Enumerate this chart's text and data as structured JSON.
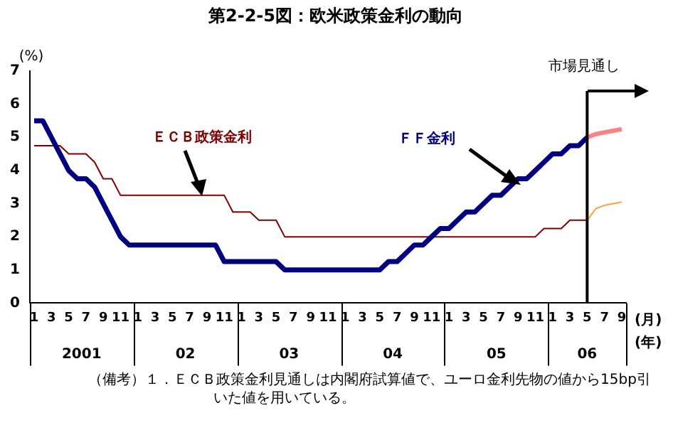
{
  "chart_data": {
    "type": "line",
    "title": "第2-2-5図：欧米政策金利の動向",
    "ylabel": "(%)",
    "xlabel": "(月)",
    "x": [
      "2001-01",
      "2001-02",
      "2001-03",
      "2001-04",
      "2001-05",
      "2001-06",
      "2001-07",
      "2001-08",
      "2001-09",
      "2001-10",
      "2001-11",
      "2001-12",
      "2002-01",
      "2002-02",
      "2002-03",
      "2002-04",
      "2002-05",
      "2002-06",
      "2002-07",
      "2002-08",
      "2002-09",
      "2002-10",
      "2002-11",
      "2002-12",
      "2003-01",
      "2003-02",
      "2003-03",
      "2003-04",
      "2003-05",
      "2003-06",
      "2003-07",
      "2003-08",
      "2003-09",
      "2003-10",
      "2003-11",
      "2003-12",
      "2004-01",
      "2004-02",
      "2004-03",
      "2004-04",
      "2004-05",
      "2004-06",
      "2004-07",
      "2004-08",
      "2004-09",
      "2004-10",
      "2004-11",
      "2004-12",
      "2005-01",
      "2005-02",
      "2005-03",
      "2005-04",
      "2005-05",
      "2005-06",
      "2005-07",
      "2005-08",
      "2005-09",
      "2005-10",
      "2005-11",
      "2005-12",
      "2006-01",
      "2006-02",
      "2006-03",
      "2006-04",
      "2006-05",
      "2006-06",
      "2006-07",
      "2006-08",
      "2006-09"
    ],
    "xlim": [
      "2000-12-16",
      "2006-09-16"
    ],
    "xticks": [
      {
        "value": "2001-01",
        "label": "1"
      },
      {
        "value": "2001-03",
        "label": "3"
      },
      {
        "value": "2001-05",
        "label": "5"
      },
      {
        "value": "2001-07",
        "label": "7"
      },
      {
        "value": "2001-09",
        "label": "9"
      },
      {
        "value": "2001-11",
        "label": "11"
      },
      {
        "value": "2002-01",
        "label": "1"
      },
      {
        "value": "2002-03",
        "label": "3"
      },
      {
        "value": "2002-05",
        "label": "5"
      },
      {
        "value": "2002-07",
        "label": "7"
      },
      {
        "value": "2002-09",
        "label": "9"
      },
      {
        "value": "2002-11",
        "label": "11"
      },
      {
        "value": "2003-01",
        "label": "1"
      },
      {
        "value": "2003-03",
        "label": "3"
      },
      {
        "value": "2003-05",
        "label": "5"
      },
      {
        "value": "2003-07",
        "label": "7"
      },
      {
        "value": "2003-09",
        "label": "9"
      },
      {
        "value": "2003-11",
        "label": "11"
      },
      {
        "value": "2004-01",
        "label": "1"
      },
      {
        "value": "2004-03",
        "label": "3"
      },
      {
        "value": "2004-05",
        "label": "5"
      },
      {
        "value": "2004-07",
        "label": "7"
      },
      {
        "value": "2004-09",
        "label": "9"
      },
      {
        "value": "2004-11",
        "label": "11"
      },
      {
        "value": "2005-01",
        "label": "1"
      },
      {
        "value": "2005-03",
        "label": "3"
      },
      {
        "value": "2005-05",
        "label": "5"
      },
      {
        "value": "2005-07",
        "label": "7"
      },
      {
        "value": "2005-09",
        "label": "9"
      },
      {
        "value": "2005-11",
        "label": "11"
      },
      {
        "value": "2006-01",
        "label": "1"
      },
      {
        "value": "2006-03",
        "label": "3"
      },
      {
        "value": "2006-05",
        "label": "5"
      },
      {
        "value": "2006-07",
        "label": "7"
      },
      {
        "value": "2006-09",
        "label": "9"
      }
    ],
    "series": [
      {
        "name": "ＦＦ金利",
        "color": "#000080",
        "values": [
          5.5,
          5.5,
          5.0,
          4.5,
          4.0,
          3.75,
          3.75,
          3.5,
          3.0,
          2.5,
          2.0,
          1.75,
          1.75,
          1.75,
          1.75,
          1.75,
          1.75,
          1.75,
          1.75,
          1.75,
          1.75,
          1.75,
          1.25,
          1.25,
          1.25,
          1.25,
          1.25,
          1.25,
          1.25,
          1.0,
          1.0,
          1.0,
          1.0,
          1.0,
          1.0,
          1.0,
          1.0,
          1.0,
          1.0,
          1.0,
          1.0,
          1.25,
          1.25,
          1.5,
          1.75,
          1.75,
          2.0,
          2.25,
          2.25,
          2.5,
          2.75,
          2.75,
          3.0,
          3.25,
          3.25,
          3.5,
          3.75,
          3.75,
          4.0,
          4.25,
          4.5,
          4.5,
          4.75,
          4.75,
          5.0,
          null,
          null,
          null,
          null
        ]
      },
      {
        "name": "ＥＣＢ政策金利",
        "color": "#800000",
        "values": [
          4.75,
          4.75,
          4.75,
          4.75,
          4.5,
          4.5,
          4.5,
          4.25,
          3.75,
          3.75,
          3.25,
          3.25,
          3.25,
          3.25,
          3.25,
          3.25,
          3.25,
          3.25,
          3.25,
          3.25,
          3.25,
          3.25,
          3.25,
          2.75,
          2.75,
          2.75,
          2.5,
          2.5,
          2.5,
          2.0,
          2.0,
          2.0,
          2.0,
          2.0,
          2.0,
          2.0,
          2.0,
          2.0,
          2.0,
          2.0,
          2.0,
          2.0,
          2.0,
          2.0,
          2.0,
          2.0,
          2.0,
          2.0,
          2.0,
          2.0,
          2.0,
          2.0,
          2.0,
          2.0,
          2.0,
          2.0,
          2.0,
          2.0,
          2.0,
          2.25,
          2.25,
          2.25,
          2.5,
          2.5,
          2.5,
          null,
          null,
          null,
          null
        ]
      },
      {
        "color": "#ff8080",
        "values": [
          null,
          null,
          null,
          null,
          null,
          null,
          null,
          null,
          null,
          null,
          null,
          null,
          null,
          null,
          null,
          null,
          null,
          null,
          null,
          null,
          null,
          null,
          null,
          null,
          null,
          null,
          null,
          null,
          null,
          null,
          null,
          null,
          null,
          null,
          null,
          null,
          null,
          null,
          null,
          null,
          null,
          null,
          null,
          null,
          null,
          null,
          null,
          null,
          null,
          null,
          null,
          null,
          null,
          null,
          null,
          null,
          null,
          null,
          null,
          null,
          null,
          null,
          null,
          null,
          5.0,
          5.1,
          5.15,
          5.2,
          5.25
        ]
      },
      {
        "color": "#ffa040",
        "values": [
          null,
          null,
          null,
          null,
          null,
          null,
          null,
          null,
          null,
          null,
          null,
          null,
          null,
          null,
          null,
          null,
          null,
          null,
          null,
          null,
          null,
          null,
          null,
          null,
          null,
          null,
          null,
          null,
          null,
          null,
          null,
          null,
          null,
          null,
          null,
          null,
          null,
          null,
          null,
          null,
          null,
          null,
          null,
          null,
          null,
          null,
          null,
          null,
          null,
          null,
          null,
          null,
          null,
          null,
          null,
          null,
          null,
          null,
          null,
          null,
          null,
          null,
          null,
          null,
          2.5,
          2.85,
          2.95,
          3.0,
          3.05
        ]
      }
    ],
    "ylim": [
      0,
      7
    ],
    "yticks": [
      0,
      1,
      2,
      3,
      4,
      5,
      6,
      7
    ],
    "grid": false,
    "legend": false,
    "marker": "none",
    "ref_lines": [
      {
        "axis": "x",
        "value": "2006-05",
        "label": "市場見通し",
        "color": "#000000"
      }
    ],
    "annotations": [
      "2001",
      "02",
      "03",
      "04",
      "05",
      "06",
      "(年)",
      "（備考）１．ＥＣＢ政策金利見通しは内閣府試算値で、ユーロ金利先物の値から15bp引いた値を用いている。"
    ]
  }
}
